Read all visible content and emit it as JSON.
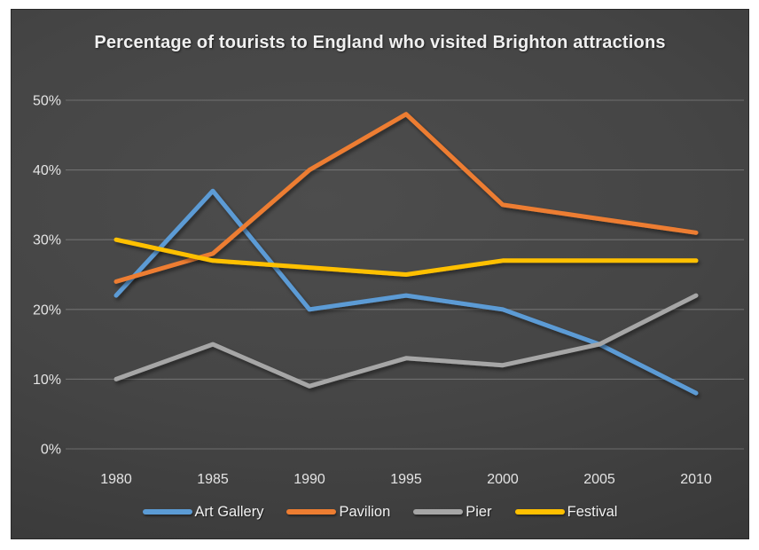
{
  "chart_data": {
    "type": "line",
    "title": "Percentage of tourists to England who visited Brighton attractions",
    "categories": [
      "1980",
      "1985",
      "1990",
      "1995",
      "2000",
      "2005",
      "2010"
    ],
    "series": [
      {
        "name": "Art Gallery",
        "color": "#5B9BD5",
        "values": [
          22,
          37,
          20,
          22,
          20,
          15,
          8
        ]
      },
      {
        "name": "Pavilion",
        "color": "#ED7D31",
        "values": [
          24,
          28,
          40,
          48,
          35,
          33,
          31
        ]
      },
      {
        "name": "Pier",
        "color": "#A6A6A6",
        "values": [
          10,
          15,
          9,
          13,
          12,
          15,
          22
        ]
      },
      {
        "name": "Festival",
        "color": "#FFC000",
        "values": [
          30,
          27,
          26,
          25,
          27,
          27,
          27
        ]
      }
    ],
    "xlabel": "",
    "ylabel": "",
    "ylim": [
      0,
      50
    ],
    "ytick_step": 10,
    "ytick_suffix": "%",
    "grid": true,
    "legend_position": "bottom",
    "colors": {
      "plot_background": "#454545",
      "text": "#e4e4e4",
      "title_text": "#f0f0f0",
      "gridline": "#999999"
    }
  }
}
